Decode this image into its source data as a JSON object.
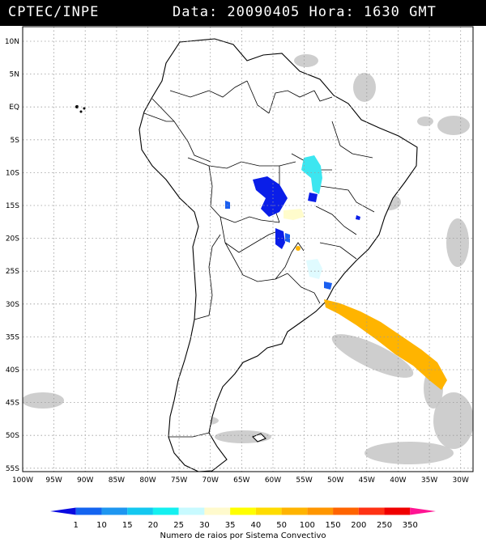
{
  "header": {
    "source": "CPTEC/INPE",
    "datetime": "Data: 20090405 Hora: 1630 GMT"
  },
  "map": {
    "lat_labels": [
      "10N",
      "5N",
      "EQ",
      "5S",
      "10S",
      "15S",
      "20S",
      "25S",
      "30S",
      "35S",
      "40S",
      "45S",
      "50S",
      "55S"
    ],
    "lon_labels": [
      "100W",
      "95W",
      "90W",
      "85W",
      "80W",
      "75W",
      "70W",
      "65W",
      "60W",
      "55W",
      "50W",
      "45W",
      "40W",
      "35W",
      "30W"
    ],
    "lat_range": [
      10,
      -56
    ],
    "lon_range": [
      -100,
      -28
    ],
    "colors": {
      "land_outline": "#000000",
      "cloud": "#c8c8c8"
    },
    "systems": [
      {
        "name": "system-central-brazil",
        "color": "#0a1ee8"
      },
      {
        "name": "system-rondonia",
        "color": "#1a5ff0"
      },
      {
        "name": "system-tocantins",
        "color": "#3ce6f0"
      },
      {
        "name": "system-goias",
        "color": "#fffccc"
      },
      {
        "name": "system-south-brazil",
        "color": "#e0fbff"
      },
      {
        "name": "system-atlantic",
        "color": "#ffb400"
      }
    ]
  },
  "legend": {
    "title": "Numero de raios por Sistema Convectivo",
    "labels": [
      "1",
      "10",
      "15",
      "20",
      "25",
      "30",
      "35",
      "40",
      "50",
      "100",
      "150",
      "200",
      "250",
      "350"
    ],
    "colors": [
      "#0a0ae0",
      "#1464f0",
      "#1e96f0",
      "#14c8f0",
      "#14f0f0",
      "#c8faff",
      "#fffacd",
      "#ffff00",
      "#ffdc00",
      "#ffb400",
      "#ff9600",
      "#ff6400",
      "#ff3214",
      "#f00000",
      "#ff1493"
    ]
  }
}
